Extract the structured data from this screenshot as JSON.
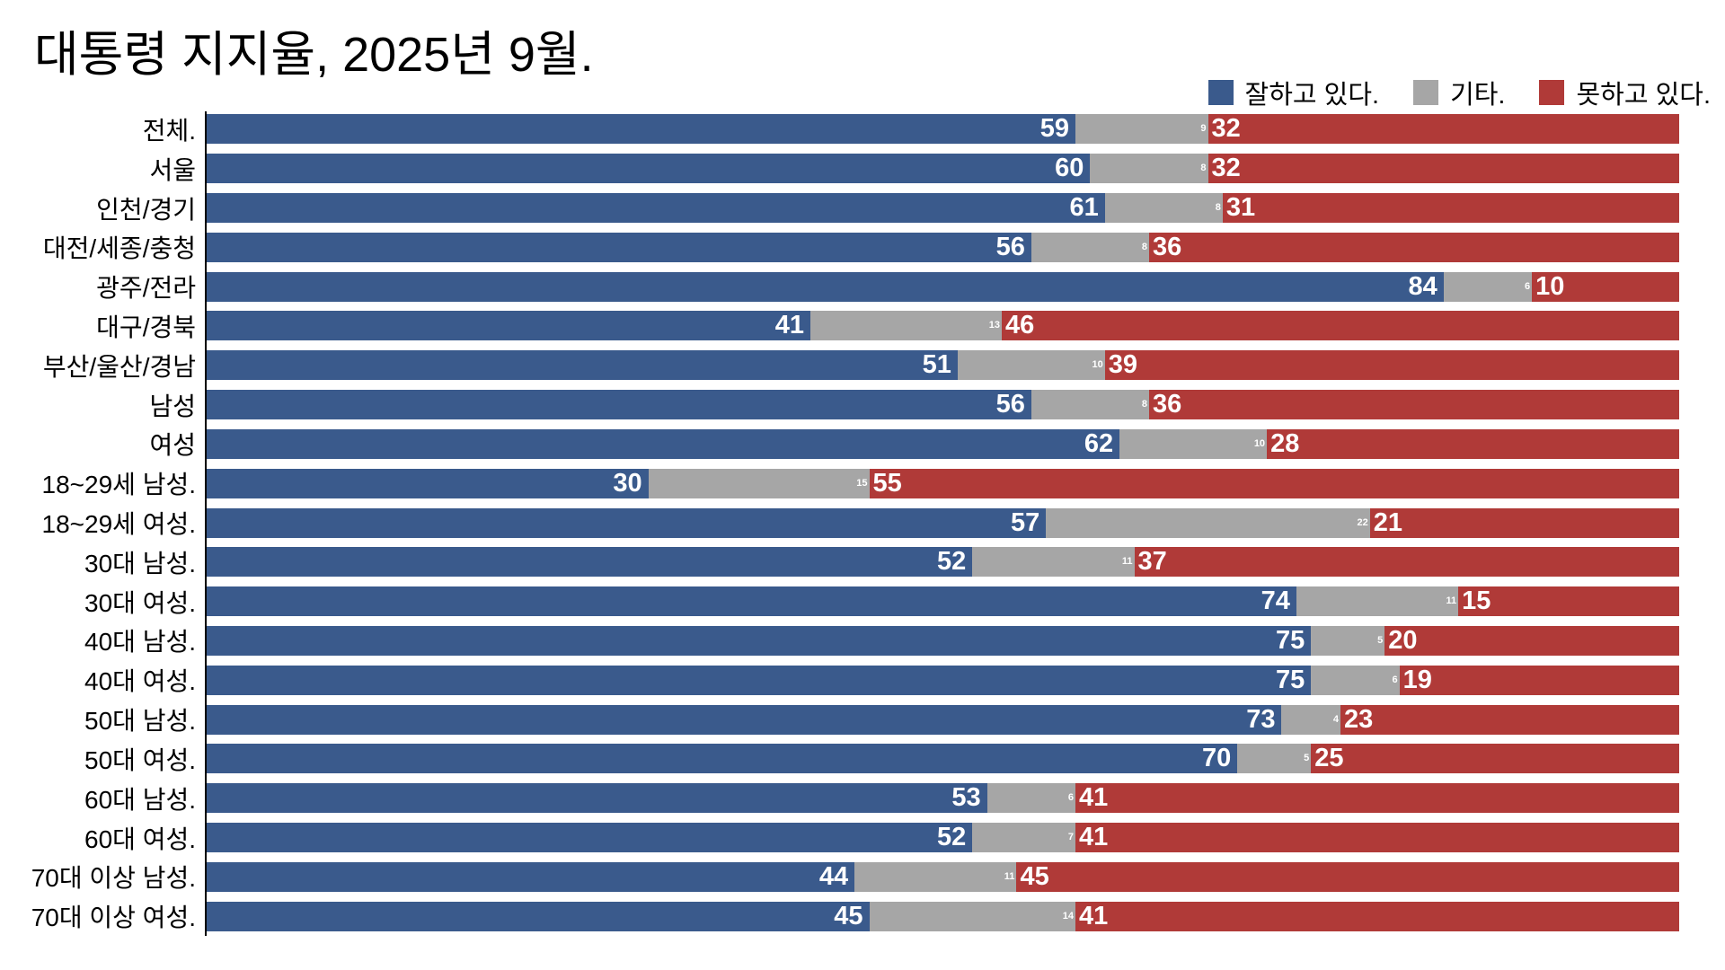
{
  "title": "대통령 지지율, 2025년 9월.",
  "colors": {
    "approve": "#3A5A8C",
    "neutral": "#A6A6A6",
    "disapprove": "#B03A38",
    "axis": "#000000",
    "value_text": "#ffffff"
  },
  "legend": [
    {
      "label": "잘하고 있다.",
      "color_key": "approve"
    },
    {
      "label": "기타.",
      "color_key": "neutral"
    },
    {
      "label": "못하고 있다.",
      "color_key": "disapprove"
    }
  ],
  "chart_data": {
    "type": "bar",
    "orientation": "horizontal",
    "stacked": true,
    "xlim": [
      0,
      100
    ],
    "grid": false,
    "legend_position": "top-right",
    "title": "대통령 지지율, 2025년 9월.",
    "categories": [
      "전체.",
      "서울",
      "인천/경기",
      "대전/세종/충청",
      "광주/전라",
      "대구/경북",
      "부산/울산/경남",
      "남성",
      "여성",
      "18~29세 남성.",
      "18~29세 여성.",
      "30대 남성.",
      "30대 여성.",
      "40대 남성.",
      "40대 여성.",
      "50대 남성.",
      "50대 여성.",
      "60대 남성.",
      "60대 여성.",
      "70대 이상 남성.",
      "70대 이상 여성."
    ],
    "series": [
      {
        "name": "잘하고 있다.",
        "values": [
          59,
          60,
          61,
          56,
          84,
          41,
          51,
          56,
          62,
          30,
          57,
          52,
          74,
          75,
          75,
          73,
          70,
          53,
          52,
          44,
          45
        ]
      },
      {
        "name": "기타.",
        "values": [
          9,
          8,
          8,
          8,
          6,
          13,
          10,
          8,
          10,
          15,
          22,
          11,
          11,
          5,
          6,
          4,
          5,
          6,
          7,
          11,
          14
        ]
      },
      {
        "name": "못하고 있다.",
        "values": [
          32,
          32,
          31,
          36,
          10,
          46,
          39,
          36,
          28,
          55,
          21,
          37,
          15,
          20,
          19,
          23,
          25,
          41,
          41,
          45,
          41
        ]
      }
    ]
  }
}
